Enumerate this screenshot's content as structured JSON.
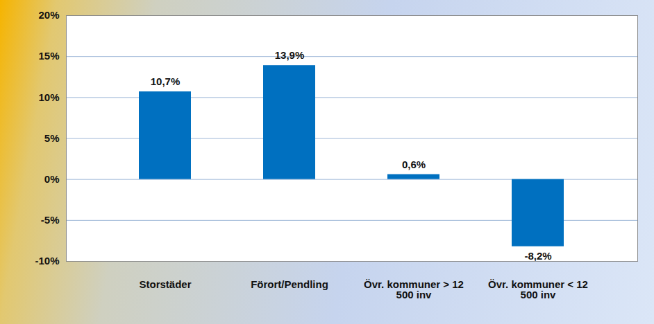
{
  "chart_data": {
    "type": "bar",
    "categories": [
      "Storstäder",
      "Förort/Pendling",
      "Övr. kommuner > 12 500 inv",
      "Övr. kommuner < 12 500 inv"
    ],
    "values": [
      10.7,
      13.9,
      0.6,
      -8.2
    ],
    "value_labels": [
      "10,7%",
      "13,9%",
      "0,6%",
      "-8,2%"
    ],
    "color": "#0070c0",
    "ylim": [
      -10,
      20
    ],
    "yticks": [
      {
        "value": -10,
        "label": "-10%"
      },
      {
        "value": -5,
        "label": "-5%"
      },
      {
        "value": 0,
        "label": "0%"
      },
      {
        "value": 5,
        "label": "5%"
      },
      {
        "value": 10,
        "label": "10%"
      },
      {
        "value": 15,
        "label": "15%"
      },
      {
        "value": 20,
        "label": "20%"
      }
    ],
    "grid": true,
    "data_labels": true
  }
}
